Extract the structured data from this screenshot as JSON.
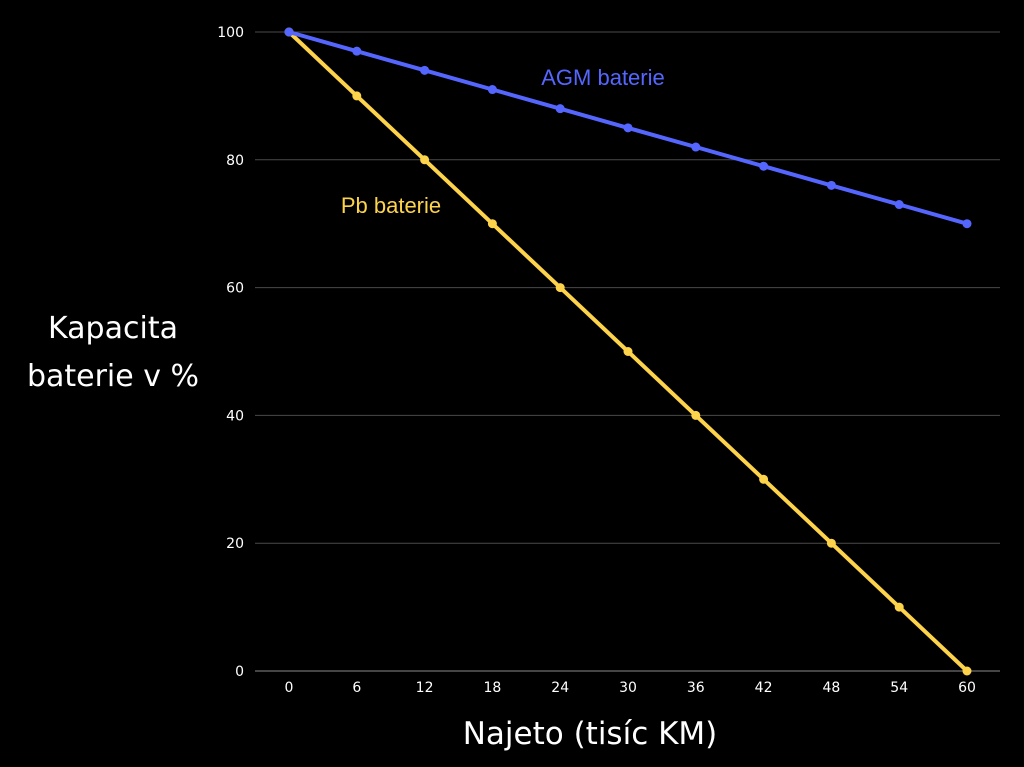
{
  "chart_data": {
    "type": "line",
    "title": "",
    "xlabel": "Najeto (tisíc KM)",
    "ylabel_lines": [
      "Kapacita",
      "baterie v %"
    ],
    "x": [
      0,
      6,
      12,
      18,
      24,
      30,
      36,
      42,
      48,
      54,
      60
    ],
    "x_tick_labels": [
      "0",
      "6",
      "12",
      "18",
      "24",
      "30",
      "36",
      "42",
      "48",
      "54",
      "60"
    ],
    "y_ticks": [
      0,
      20,
      40,
      60,
      80,
      100
    ],
    "y_tick_labels": [
      "0",
      "20",
      "40",
      "60",
      "80",
      "100"
    ],
    "xlim": [
      0,
      60
    ],
    "ylim": [
      0,
      100
    ],
    "grid": "horizontal",
    "legend": "inline",
    "series": [
      {
        "name": "AGM baterie",
        "color": "#5566ff",
        "values": [
          100,
          97,
          94,
          91,
          88,
          85,
          82,
          79,
          76,
          73,
          70
        ]
      },
      {
        "name": "Pb baterie",
        "color": "#fdd34b",
        "values": [
          100,
          90,
          80,
          70,
          60,
          50,
          40,
          30,
          20,
          10,
          0
        ]
      }
    ]
  }
}
